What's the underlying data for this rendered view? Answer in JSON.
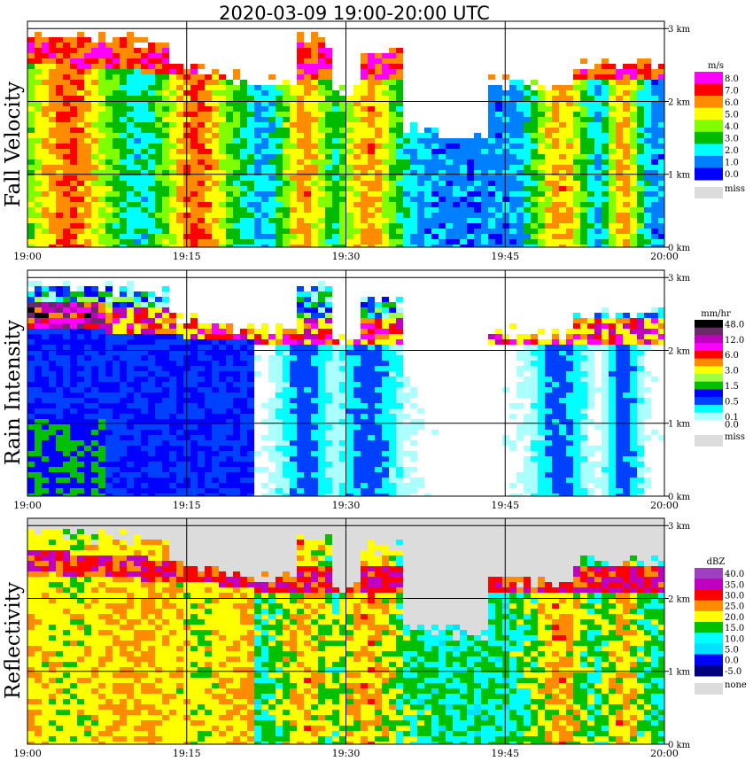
{
  "chart_data": {
    "type": "heatmap",
    "title": "2020-03-09   19:00-20:00 UTC",
    "x_ticks": [
      "19:00",
      "19:15",
      "19:30",
      "19:45",
      "20:00"
    ],
    "y_ticks": [
      "0 km",
      "1 km",
      "2 km",
      "3 km"
    ],
    "xlim": [
      "19:00",
      "20:00"
    ],
    "ylim_km": [
      0,
      3.1
    ],
    "grid": true,
    "panels": [
      {
        "name": "fall-velocity",
        "label": "Fall Velocity",
        "unit": "m/s",
        "colorbar": [
          {
            "label": "8.0",
            "color": "#ff00ff"
          },
          {
            "label": "7.0",
            "color": "#ff0000"
          },
          {
            "label": "6.0",
            "color": "#ff8c00"
          },
          {
            "label": "5.0",
            "color": "#ffff00"
          },
          {
            "label": "4.0",
            "color": "#80ff00"
          },
          {
            "label": "3.0",
            "color": "#00bb00"
          },
          {
            "label": "2.0",
            "color": "#00ffff"
          },
          {
            "label": "1.0",
            "color": "#0080ff"
          },
          {
            "label": "0.0",
            "color": "#0000ff"
          }
        ],
        "missing_label": "miss",
        "missing_color": "#dcdcdc"
      },
      {
        "name": "rain-intensity",
        "label": "Rain Intensity",
        "unit": "mm/hr",
        "colorbar": [
          {
            "label": "48.0",
            "color": "#000000"
          },
          {
            "label": "",
            "color": "#6a2a6a"
          },
          {
            "label": "12.0",
            "color": "#c000c0"
          },
          {
            "label": "",
            "color": "#ff00ff"
          },
          {
            "label": "6.0",
            "color": "#ff0000"
          },
          {
            "label": "",
            "color": "#ff8c00"
          },
          {
            "label": "3.0",
            "color": "#ffff00"
          },
          {
            "label": "",
            "color": "#a0ff40"
          },
          {
            "label": "1.5",
            "color": "#00c000"
          },
          {
            "label": "",
            "color": "#0000ff"
          },
          {
            "label": "0.5",
            "color": "#0040ff"
          },
          {
            "label": "",
            "color": "#00ffff"
          },
          {
            "label": "0.1",
            "color": "#aaffff"
          },
          {
            "label": "0.0",
            "color": "#ffffff"
          }
        ],
        "missing_label": "miss",
        "missing_color": "#dcdcdc"
      },
      {
        "name": "reflectivity",
        "label": "Reflectivity",
        "unit": "dBZ",
        "colorbar": [
          {
            "label": "40.0",
            "color": "#a040c0"
          },
          {
            "label": "35.0",
            "color": "#c000c0"
          },
          {
            "label": "30.0",
            "color": "#ff0000"
          },
          {
            "label": "25.0",
            "color": "#ff8c00"
          },
          {
            "label": "20.0",
            "color": "#ffff00"
          },
          {
            "label": "15.0",
            "color": "#00c000"
          },
          {
            "label": "10.0",
            "color": "#00ffff"
          },
          {
            "label": "5.0",
            "color": "#00e0ff"
          },
          {
            "label": "0.0",
            "color": "#0000ff"
          },
          {
            "label": "-5.0",
            "color": "#000080"
          }
        ],
        "missing_label": "none",
        "missing_color": "#dcdcdc"
      }
    ]
  }
}
